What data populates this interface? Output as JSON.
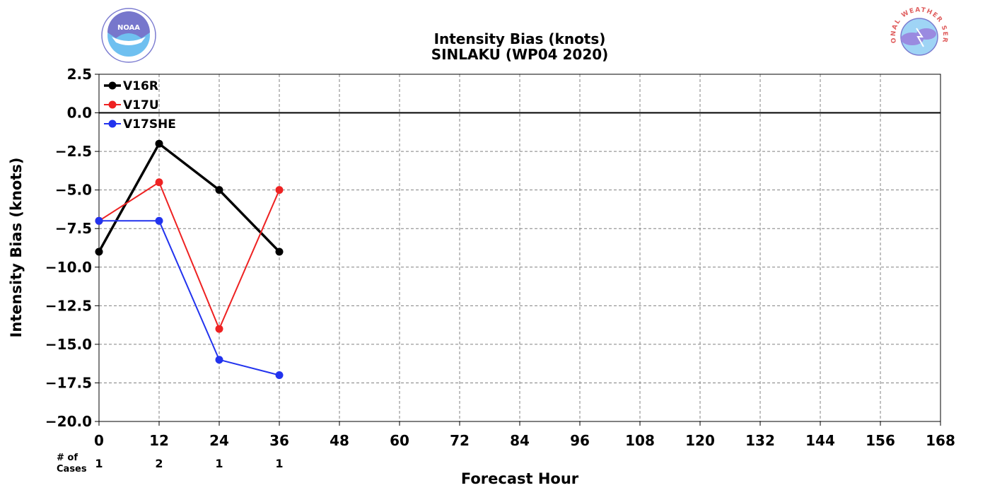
{
  "logos": {
    "left": {
      "icon": "noaa-logo",
      "text": "NOAA"
    },
    "right": {
      "icon": "nws-logo",
      "text": "NATIONAL WEATHER SERVICE"
    }
  },
  "cases_label": [
    "# of",
    "Cases"
  ],
  "chart_data": {
    "type": "line",
    "title": "Intensity Bias (knots)",
    "subtitle": "SINLAKU (WP04 2020)",
    "xlabel": "Forecast Hour",
    "ylabel": "Intensity Bias (knots)",
    "xlim": [
      0,
      168
    ],
    "ylim": [
      -20,
      2.5
    ],
    "xticks": [
      0,
      12,
      24,
      36,
      48,
      60,
      72,
      84,
      96,
      108,
      120,
      132,
      144,
      156,
      168
    ],
    "yticks": [
      2.5,
      0.0,
      -2.5,
      -5.0,
      -7.5,
      -10.0,
      -12.5,
      -15.0,
      -17.5,
      -20.0
    ],
    "ytick_labels": [
      "2.5",
      "0.0",
      "−2.5",
      "−5.0",
      "−7.5",
      "−10.0",
      "−12.5",
      "−15.0",
      "−17.5",
      "−20.0"
    ],
    "grid": true,
    "zero_line": true,
    "legend_position": "top-left",
    "series": [
      {
        "name": "V16R",
        "color": "#000000",
        "x": [
          0,
          12,
          24,
          36
        ],
        "values": [
          -9,
          -2,
          -5,
          -9
        ]
      },
      {
        "name": "V17U",
        "color": "#ee2222",
        "x": [
          0,
          12,
          24,
          36
        ],
        "values": [
          -7,
          -4.5,
          -14,
          -5
        ]
      },
      {
        "name": "V17SHE",
        "color": "#2233ee",
        "x": [
          0,
          12,
          24,
          36
        ],
        "values": [
          -7,
          -7,
          -16,
          -17
        ]
      }
    ],
    "cases": [
      {
        "x": 0,
        "count": "1"
      },
      {
        "x": 12,
        "count": "2"
      },
      {
        "x": 24,
        "count": "1"
      },
      {
        "x": 36,
        "count": "1"
      }
    ]
  }
}
